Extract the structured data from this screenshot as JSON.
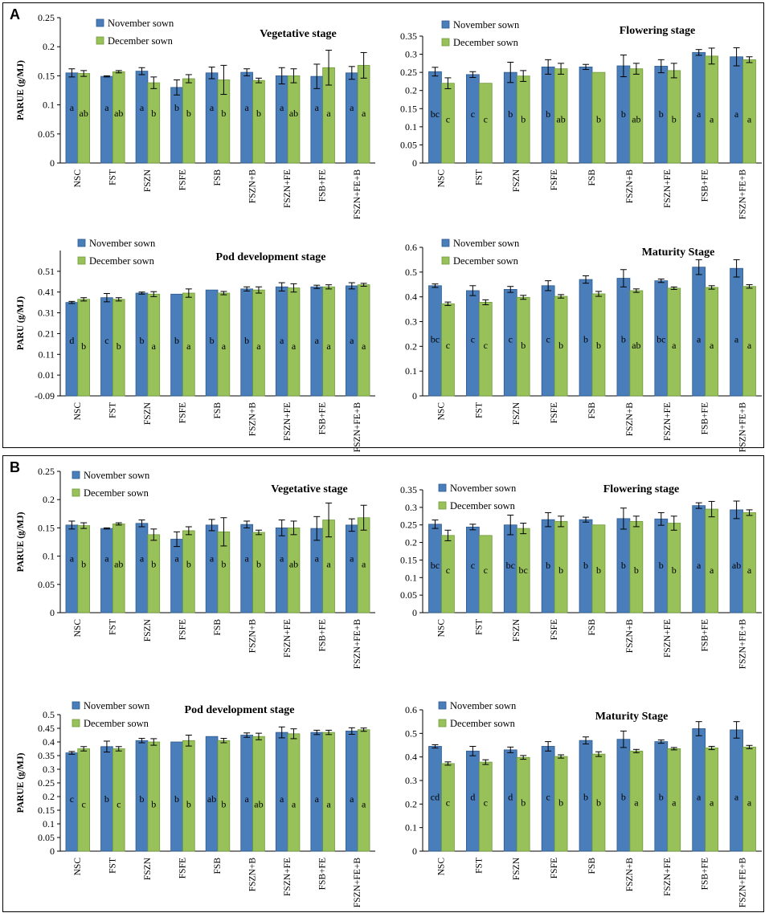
{
  "colors": {
    "nov": "#4a7ebb",
    "nov_edge": "#2e5a8e",
    "dec": "#98c15a",
    "dec_edge": "#6f9a3a"
  },
  "legend": {
    "nov": "November sown",
    "dec": "December sown"
  },
  "panels": [
    {
      "label": "A"
    },
    {
      "label": "B"
    }
  ],
  "chart_data": [
    {
      "panel": "A",
      "type": "bar",
      "title": "Vegetative stage",
      "ylabel": "PARUE (g/MJ)",
      "xlabel": "",
      "categories": [
        "NSC",
        "FST",
        "FSZN",
        "FSFE",
        "FSB",
        "FSZN+B",
        "FSZN+FE",
        "FSB+FE",
        "FSZN+FE+B"
      ],
      "ylim": [
        0,
        0.25
      ],
      "yticks": [
        "0",
        "0.05",
        "0.1",
        "0.15",
        "0.2",
        "0.25"
      ],
      "ytick_values": [
        0,
        0.05,
        0.1,
        0.15,
        0.2,
        0.25
      ],
      "series": [
        {
          "name": "November sown",
          "values": [
            0.155,
            0.149,
            0.158,
            0.13,
            0.155,
            0.156,
            0.15,
            0.149,
            0.155
          ],
          "errors": [
            0.007,
            0.001,
            0.006,
            0.013,
            0.01,
            0.006,
            0.014,
            0.021,
            0.011
          ],
          "letters": [
            "a",
            "a",
            "a",
            "b",
            "a",
            "a",
            "a",
            "a",
            "a"
          ]
        },
        {
          "name": "December sown",
          "values": [
            0.154,
            0.157,
            0.138,
            0.145,
            0.143,
            0.142,
            0.15,
            0.164,
            0.168
          ],
          "errors": [
            0.005,
            0.002,
            0.01,
            0.007,
            0.025,
            0.004,
            0.012,
            0.03,
            0.022
          ],
          "letters": [
            "ab",
            "ab",
            "b",
            "b",
            "b",
            "b",
            "ab",
            "a",
            "a"
          ]
        }
      ]
    },
    {
      "panel": "A",
      "type": "bar",
      "title": "Flowering stage",
      "ylabel": "",
      "xlabel": "",
      "categories": [
        "NSC",
        "FST",
        "FSZN",
        "FSFE",
        "FSB",
        "FSZN+B",
        "FSZN+FE",
        "FSB+FE",
        "FSZN+FE+B"
      ],
      "ylim": [
        0,
        0.35
      ],
      "yticks": [
        "0",
        "0.05",
        "0.1",
        "0.15",
        "0.2",
        "0.25",
        "0.3",
        "0.35"
      ],
      "ytick_values": [
        0,
        0.05,
        0.1,
        0.15,
        0.2,
        0.25,
        0.3,
        0.35
      ],
      "series": [
        {
          "name": "November sown",
          "values": [
            0.252,
            0.244,
            0.25,
            0.265,
            0.265,
            0.268,
            0.267,
            0.305,
            0.293
          ],
          "errors": [
            0.012,
            0.008,
            0.028,
            0.02,
            0.007,
            0.03,
            0.018,
            0.008,
            0.025
          ],
          "letters": [
            "bc",
            "c",
            "b",
            "b",
            "",
            "b",
            "b",
            "a",
            "a"
          ]
        },
        {
          "name": "December sown",
          "values": [
            0.22,
            0.22,
            0.24,
            0.26,
            0.25,
            0.26,
            0.255,
            0.295,
            0.285
          ],
          "errors": [
            0.015,
            0.0,
            0.015,
            0.015,
            0.0,
            0.015,
            0.02,
            0.022,
            0.008
          ],
          "letters": [
            "c",
            "c",
            "b",
            "ab",
            "b",
            "ab",
            "b",
            "a",
            "a"
          ]
        }
      ]
    },
    {
      "panel": "A",
      "type": "bar",
      "title": "Pod development stage",
      "ylabel": "PARU (g/MJ)",
      "xlabel": "",
      "categories": [
        "NSC",
        "FST",
        "FSZN",
        "FSFE",
        "FSB",
        "FSZN+B",
        "FSZN+FE",
        "FSB+FE",
        "FSZN+FE+B"
      ],
      "ylim": [
        -0.09,
        0.61
      ],
      "yticks": [
        "-0.09",
        "0.01",
        "0.11",
        "0.21",
        "0.31",
        "0.41",
        "0.51"
      ],
      "ytick_values": [
        -0.09,
        0.01,
        0.11,
        0.21,
        0.31,
        0.41,
        0.51
      ],
      "series": [
        {
          "name": "November sown",
          "values": [
            0.36,
            0.383,
            0.405,
            0.4,
            0.42,
            0.425,
            0.435,
            0.435,
            0.44
          ],
          "errors": [
            0.005,
            0.02,
            0.005,
            0.0,
            0.0,
            0.01,
            0.02,
            0.008,
            0.015
          ],
          "letters": [
            "d",
            "c",
            "b",
            "b",
            "b",
            "b",
            "a",
            "a",
            "a"
          ]
        },
        {
          "name": "December sown",
          "values": [
            0.375,
            0.375,
            0.4,
            0.405,
            0.405,
            0.42,
            0.43,
            0.435,
            0.445
          ],
          "errors": [
            0.008,
            0.008,
            0.012,
            0.02,
            0.008,
            0.015,
            0.02,
            0.01,
            0.007
          ],
          "letters": [
            "b",
            "b",
            "a",
            "a",
            "a",
            "a",
            "a",
            "a",
            "a"
          ]
        }
      ]
    },
    {
      "panel": "A",
      "type": "bar",
      "title": "Maturity Stage",
      "ylabel": "",
      "xlabel": "",
      "categories": [
        "NSC",
        "FST",
        "FSZN",
        "FSFE",
        "FSB",
        "FSZN+B",
        "FSZN+FE",
        "FSB+FE",
        "FSZN+FE+B"
      ],
      "ylim": [
        0,
        0.6
      ],
      "yticks": [
        "0",
        "0.1",
        "0.2",
        "0.3",
        "0.4",
        "0.5",
        "0.6"
      ],
      "ytick_values": [
        0,
        0.1,
        0.2,
        0.3,
        0.4,
        0.5,
        0.6
      ],
      "series": [
        {
          "name": "November sown",
          "values": [
            0.445,
            0.425,
            0.43,
            0.445,
            0.47,
            0.475,
            0.465,
            0.52,
            0.515
          ],
          "errors": [
            0.007,
            0.02,
            0.012,
            0.02,
            0.015,
            0.035,
            0.007,
            0.03,
            0.035
          ],
          "letters": [
            "bc",
            "c",
            "c",
            "c",
            "b",
            "b",
            "bc",
            "a",
            "a"
          ]
        },
        {
          "name": "December sown",
          "values": [
            0.372,
            0.378,
            0.398,
            0.402,
            0.412,
            0.425,
            0.435,
            0.438,
            0.442
          ],
          "errors": [
            0.007,
            0.01,
            0.008,
            0.007,
            0.01,
            0.007,
            0.005,
            0.007,
            0.007
          ],
          "letters": [
            "c",
            "c",
            "b",
            "b",
            "b",
            "ab",
            "a",
            "a",
            "a"
          ]
        }
      ]
    },
    {
      "panel": "B",
      "type": "bar",
      "title": "Vegetative stage",
      "ylabel": "PARUE (g/MJ)",
      "xlabel": "",
      "categories": [
        "NSC",
        "FST",
        "FSZN",
        "FSFE",
        "FSB",
        "FSZN+B",
        "FSZN+FE",
        "FSB+FE",
        "FSZN+FE+B"
      ],
      "ylim": [
        0,
        0.25
      ],
      "yticks": [
        "0",
        "0.05",
        "0.1",
        "0.15",
        "0.2",
        "0.25"
      ],
      "ytick_values": [
        0,
        0.05,
        0.1,
        0.15,
        0.2,
        0.25
      ],
      "series": [
        {
          "name": "November sown",
          "values": [
            0.155,
            0.149,
            0.158,
            0.13,
            0.155,
            0.156,
            0.15,
            0.149,
            0.155
          ],
          "errors": [
            0.007,
            0.001,
            0.006,
            0.013,
            0.01,
            0.006,
            0.014,
            0.021,
            0.011
          ],
          "letters": [
            "a",
            "a",
            "a",
            "a",
            "a",
            "a",
            "a",
            "a",
            "a"
          ]
        },
        {
          "name": "December sown",
          "values": [
            0.154,
            0.157,
            0.138,
            0.145,
            0.143,
            0.142,
            0.15,
            0.164,
            0.168
          ],
          "errors": [
            0.005,
            0.002,
            0.01,
            0.007,
            0.025,
            0.004,
            0.012,
            0.03,
            0.022
          ],
          "letters": [
            "b",
            "ab",
            "b",
            "b",
            "b",
            "b",
            "ab",
            "a",
            "a"
          ]
        }
      ]
    },
    {
      "panel": "B",
      "type": "bar",
      "title": "Flowering stage",
      "ylabel": "",
      "xlabel": "",
      "categories": [
        "NSC",
        "FST",
        "FSZN",
        "FSFE",
        "FSB",
        "FSZN+B",
        "FSZN+FE",
        "FSB+FE",
        "FSZN+FE+B"
      ],
      "ylim": [
        0,
        0.35
      ],
      "yticks": [
        "0",
        "0.05",
        "0.1",
        "0.15",
        "0.2",
        "0.25",
        "0.3",
        "0.35"
      ],
      "ytick_values": [
        0,
        0.05,
        0.1,
        0.15,
        0.2,
        0.25,
        0.3,
        0.35
      ],
      "series": [
        {
          "name": "November sown",
          "values": [
            0.252,
            0.244,
            0.25,
            0.265,
            0.265,
            0.268,
            0.267,
            0.305,
            0.293
          ],
          "errors": [
            0.012,
            0.008,
            0.028,
            0.02,
            0.007,
            0.03,
            0.018,
            0.008,
            0.025
          ],
          "letters": [
            "bc",
            "c",
            "bc",
            "b",
            "b",
            "b",
            "b",
            "a",
            "ab"
          ]
        },
        {
          "name": "December sown",
          "values": [
            0.22,
            0.22,
            0.24,
            0.26,
            0.25,
            0.26,
            0.255,
            0.295,
            0.285
          ],
          "errors": [
            0.015,
            0.0,
            0.015,
            0.015,
            0.0,
            0.015,
            0.02,
            0.022,
            0.008
          ],
          "letters": [
            "c",
            "c",
            "bc",
            "b",
            "b",
            "b",
            "b",
            "a",
            "a"
          ]
        }
      ]
    },
    {
      "panel": "B",
      "type": "bar",
      "title": "Pod development stage",
      "ylabel": "PARUE (g/MJ)",
      "xlabel": "",
      "categories": [
        "NSC",
        "FST",
        "FSZN",
        "FSFE",
        "FSB",
        "FSZN+B",
        "FSZN+FE",
        "FSB+FE",
        "FSZN+FE+B"
      ],
      "ylim": [
        0,
        0.5
      ],
      "yticks": [
        "0",
        "0.05",
        "0.1",
        "0.15",
        "0.2",
        "0.25",
        "0.3",
        "0.35",
        "0.4",
        "0.45",
        "0.5"
      ],
      "ytick_values": [
        0,
        0.05,
        0.1,
        0.15,
        0.2,
        0.25,
        0.3,
        0.35,
        0.4,
        0.45,
        0.5
      ],
      "series": [
        {
          "name": "November sown",
          "values": [
            0.36,
            0.383,
            0.405,
            0.4,
            0.42,
            0.425,
            0.435,
            0.435,
            0.44
          ],
          "errors": [
            0.005,
            0.02,
            0.008,
            0.0,
            0.0,
            0.008,
            0.02,
            0.008,
            0.012
          ],
          "letters": [
            "c",
            "b",
            "b",
            "b",
            "ab",
            "a",
            "a",
            "a",
            "a"
          ]
        },
        {
          "name": "December sown",
          "values": [
            0.375,
            0.375,
            0.4,
            0.405,
            0.405,
            0.42,
            0.43,
            0.435,
            0.445
          ],
          "errors": [
            0.008,
            0.008,
            0.012,
            0.02,
            0.008,
            0.012,
            0.018,
            0.008,
            0.006
          ],
          "letters": [
            "c",
            "c",
            "b",
            "b",
            "b",
            "ab",
            "a",
            "a",
            "a"
          ]
        }
      ]
    },
    {
      "panel": "B",
      "type": "bar",
      "title": "Maturity Stage",
      "ylabel": "",
      "xlabel": "",
      "categories": [
        "NSC",
        "FST",
        "FSZN",
        "FSFE",
        "FSB",
        "FSZN+B",
        "FSZN+FE",
        "FSB+FE",
        "FSZN+FE+B"
      ],
      "ylim": [
        0,
        0.6
      ],
      "yticks": [
        "0",
        "0.1",
        "0.2",
        "0.3",
        "0.4",
        "0.5",
        "0.6"
      ],
      "ytick_values": [
        0,
        0.1,
        0.2,
        0.3,
        0.4,
        0.5,
        0.6
      ],
      "series": [
        {
          "name": "November sown",
          "values": [
            0.445,
            0.425,
            0.43,
            0.445,
            0.47,
            0.475,
            0.465,
            0.52,
            0.515
          ],
          "errors": [
            0.007,
            0.02,
            0.012,
            0.02,
            0.015,
            0.035,
            0.007,
            0.03,
            0.035
          ],
          "letters": [
            "cd",
            "d",
            "d",
            "c",
            "b",
            "b",
            "b",
            "a",
            "a"
          ]
        },
        {
          "name": "December sown",
          "values": [
            0.372,
            0.378,
            0.398,
            0.402,
            0.412,
            0.425,
            0.435,
            0.438,
            0.442
          ],
          "errors": [
            0.007,
            0.01,
            0.008,
            0.007,
            0.01,
            0.007,
            0.005,
            0.007,
            0.007
          ],
          "letters": [
            "c",
            "c",
            "b",
            "b",
            "b",
            "a",
            "a",
            "a",
            "a"
          ]
        }
      ]
    }
  ]
}
